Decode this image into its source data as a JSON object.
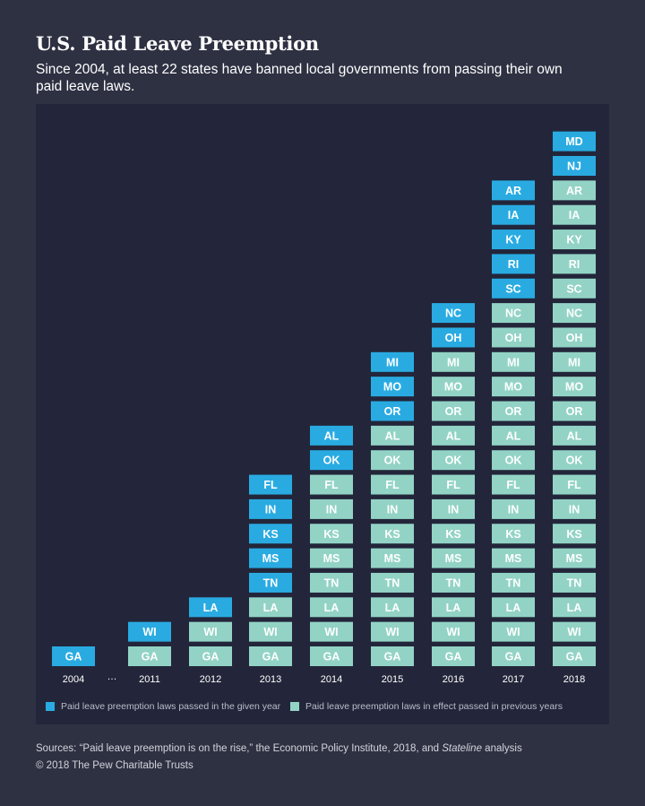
{
  "header": {
    "title": "U.S. Paid Leave Preemption",
    "subtitle": "Since 2004, at least 22 states have banned local governments from passing their own paid leave laws."
  },
  "colors": {
    "new": "#29abe2",
    "previous": "#92d3c5",
    "new_text": "#ffffff",
    "previous_text": "#ffffff",
    "background": "#2e3142",
    "panel": "#23263a"
  },
  "chart_data": {
    "type": "bar",
    "stacked": true,
    "categories": [
      "2004",
      "2011",
      "2012",
      "2013",
      "2014",
      "2015",
      "2016",
      "2017",
      "2018"
    ],
    "gap_marker": "…",
    "columns": [
      {
        "year": "2004",
        "new": [
          "GA"
        ],
        "previous": []
      },
      {
        "year": "2011",
        "new": [
          "WI"
        ],
        "previous": [
          "GA"
        ]
      },
      {
        "year": "2012",
        "new": [
          "LA"
        ],
        "previous": [
          "GA",
          "WI"
        ]
      },
      {
        "year": "2013",
        "new": [
          "FL",
          "IN",
          "KS",
          "MS",
          "TN"
        ],
        "previous": [
          "GA",
          "WI",
          "LA"
        ]
      },
      {
        "year": "2014",
        "new": [
          "AL",
          "OK"
        ],
        "previous": [
          "GA",
          "WI",
          "LA",
          "TN",
          "MS",
          "KS",
          "IN",
          "FL"
        ]
      },
      {
        "year": "2015",
        "new": [
          "MI",
          "MO",
          "OR"
        ],
        "previous": [
          "GA",
          "WI",
          "LA",
          "TN",
          "MS",
          "KS",
          "IN",
          "FL",
          "OK",
          "AL"
        ]
      },
      {
        "year": "2016",
        "new": [
          "NC",
          "OH"
        ],
        "previous": [
          "GA",
          "WI",
          "LA",
          "TN",
          "MS",
          "KS",
          "IN",
          "FL",
          "OK",
          "AL",
          "OR",
          "MO",
          "MI"
        ]
      },
      {
        "year": "2017",
        "new": [
          "AR",
          "IA",
          "KY",
          "RI",
          "SC"
        ],
        "previous": [
          "GA",
          "WI",
          "LA",
          "TN",
          "MS",
          "KS",
          "IN",
          "FL",
          "OK",
          "AL",
          "OR",
          "MO",
          "MI",
          "OH",
          "NC"
        ]
      },
      {
        "year": "2018",
        "new": [
          "MD",
          "NJ"
        ],
        "previous": [
          "GA",
          "WI",
          "LA",
          "TN",
          "MS",
          "KS",
          "IN",
          "FL",
          "OK",
          "AL",
          "OR",
          "MO",
          "MI",
          "OH",
          "NC",
          "SC",
          "RI",
          "KY",
          "IA",
          "AR"
        ]
      }
    ],
    "legend": [
      {
        "key": "new",
        "label": "Paid leave preemption laws passed in the given year"
      },
      {
        "key": "previous",
        "label": "Paid leave preemption laws in effect passed in previous years"
      }
    ],
    "legend_position": "bottom-left"
  },
  "footer": {
    "sources_prefix": "Sources: “Paid leave preemption is on the rise,” the Economic Policy Institute, 2018, and ",
    "sources_italic": "Stateline",
    "sources_suffix": " analysis",
    "copyright": "© 2018 The Pew Charitable Trusts"
  }
}
